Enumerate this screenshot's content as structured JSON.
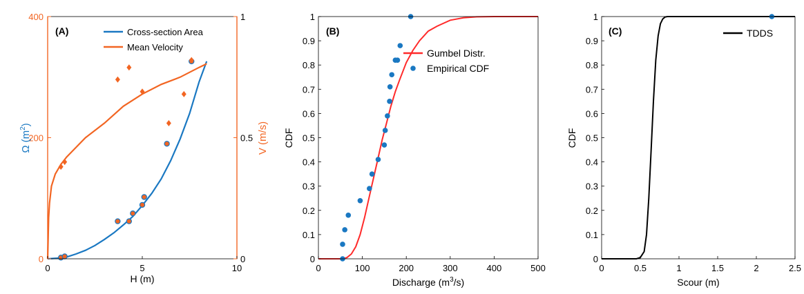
{
  "colors": {
    "blue": "#1a78c2",
    "orange": "#f26522",
    "red": "#ff2a2a",
    "dot": "#1a78c2",
    "black": "#000000"
  },
  "chart_data": [
    {
      "type": "line",
      "panel_label": "(A)",
      "xlabel": "H (m)",
      "ylabel_left_main": "Ω",
      "ylabel_left_unit": "(m",
      "ylabel_left_sup": "2",
      "ylabel_left_close": ")",
      "ylabel_right": "V (m/s)",
      "xlim": [
        0,
        10
      ],
      "ylim_left": [
        0,
        400
      ],
      "ylim_right": [
        0,
        1
      ],
      "xticks": [
        0,
        5,
        10
      ],
      "yticks_left": [
        0,
        200,
        400
      ],
      "yticks_right": [
        0,
        0.5,
        1
      ],
      "legend_position": "top-right",
      "series": [
        {
          "name": "Cross-section Area",
          "axis": "left",
          "kind": "line",
          "color": "blue",
          "x": [
            0,
            0.5,
            1,
            1.5,
            2,
            2.5,
            3,
            3.5,
            4,
            4.5,
            5,
            5.5,
            6,
            6.5,
            7,
            7.5,
            8,
            8.4
          ],
          "y": [
            0,
            1,
            3,
            8,
            14,
            22,
            32,
            43,
            56,
            70,
            88,
            108,
            132,
            162,
            198,
            240,
            292,
            326
          ]
        },
        {
          "name": "Mean Velocity",
          "axis": "right",
          "kind": "line",
          "color": "orange",
          "x": [
            0,
            0.05,
            0.1,
            0.2,
            0.4,
            0.7,
            1,
            1.5,
            2,
            3,
            4,
            5,
            6,
            7,
            8,
            8.4
          ],
          "y": [
            0,
            0.17,
            0.23,
            0.3,
            0.35,
            0.39,
            0.42,
            0.46,
            0.5,
            0.56,
            0.63,
            0.68,
            0.72,
            0.75,
            0.79,
            0.805
          ]
        },
        {
          "name": "",
          "axis": "left",
          "kind": "scatter",
          "marker": "circle",
          "color": "blue",
          "x": [
            0.7,
            0.9,
            3.7,
            4.3,
            4.5,
            5.0,
            5.1,
            6.3,
            7.6
          ],
          "y": [
            2,
            4,
            62,
            62,
            75,
            89,
            102,
            190,
            326
          ]
        },
        {
          "name": "",
          "axis": "right",
          "kind": "scatter",
          "marker": "diamond",
          "color": "orange",
          "x": [
            0.7,
            0.9,
            3.7,
            4.3,
            5.0,
            6.4,
            7.2,
            7.6
          ],
          "y": [
            0.38,
            0.4,
            0.74,
            0.79,
            0.69,
            0.56,
            0.68,
            0.82
          ]
        }
      ]
    },
    {
      "type": "line",
      "panel_label": "(B)",
      "xlabel_main": "Discharge (m",
      "xlabel_sup": "3",
      "xlabel_end": "/s)",
      "ylabel": "CDF",
      "xlim": [
        0,
        500
      ],
      "ylim": [
        0,
        1
      ],
      "xticks": [
        0,
        100,
        200,
        300,
        400,
        500
      ],
      "yticks": [
        "0",
        "0.1",
        "0.2",
        "0.3",
        "0.4",
        "0.5",
        "0.6",
        "0.7",
        "0.8",
        "0.9",
        "1"
      ],
      "legend_position": "right",
      "series": [
        {
          "name": "Gumbel Distr.",
          "kind": "line",
          "color": "red",
          "x": [
            0,
            20,
            40,
            55,
            65,
            75,
            85,
            95,
            105,
            115,
            125,
            135,
            145,
            155,
            165,
            175,
            185,
            200,
            215,
            230,
            250,
            270,
            300,
            330,
            360,
            400,
            500
          ],
          "y": [
            0,
            0,
            0,
            0,
            0.005,
            0.02,
            0.05,
            0.1,
            0.17,
            0.25,
            0.33,
            0.41,
            0.49,
            0.56,
            0.63,
            0.69,
            0.74,
            0.81,
            0.86,
            0.9,
            0.94,
            0.96,
            0.985,
            0.995,
            0.999,
            1,
            1
          ]
        },
        {
          "name": "Empirical CDF",
          "kind": "scatter",
          "color": "dot",
          "x": [
            55,
            55,
            60,
            68,
            95,
            116,
            122,
            136,
            150,
            152,
            157,
            162,
            163,
            167,
            175,
            180,
            186,
            210
          ],
          "y": [
            0,
            0.06,
            0.12,
            0.18,
            0.24,
            0.29,
            0.35,
            0.41,
            0.47,
            0.53,
            0.59,
            0.65,
            0.71,
            0.76,
            0.82,
            0.82,
            0.88,
            1
          ]
        }
      ]
    },
    {
      "type": "line",
      "panel_label": "(C)",
      "xlabel": "Scour (m)",
      "ylabel": "CDF",
      "xlim": [
        0,
        2.5
      ],
      "ylim": [
        0,
        1
      ],
      "xticks": [
        "0",
        "0.5",
        "1",
        "1.5",
        "2",
        "2.5"
      ],
      "yticks": [
        "0",
        "0.1",
        "0.2",
        "0.3",
        "0.4",
        "0.5",
        "0.6",
        "0.7",
        "0.8",
        "0.9",
        "1"
      ],
      "legend_position": "top-right",
      "series": [
        {
          "name": "TDDS",
          "kind": "line",
          "color": "black",
          "x": [
            0,
            0.45,
            0.5,
            0.55,
            0.58,
            0.61,
            0.64,
            0.67,
            0.7,
            0.73,
            0.76,
            0.79,
            0.82,
            0.85,
            2.5
          ],
          "y": [
            0,
            0,
            0.005,
            0.03,
            0.1,
            0.25,
            0.45,
            0.65,
            0.82,
            0.92,
            0.97,
            0.99,
            0.998,
            1,
            1
          ]
        },
        {
          "name": "",
          "kind": "scatter",
          "color": "dot",
          "x": [
            2.2
          ],
          "y": [
            1
          ]
        }
      ]
    }
  ]
}
